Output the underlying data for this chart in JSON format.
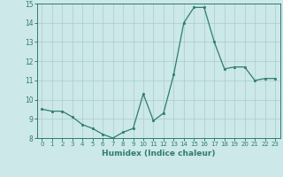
{
  "x": [
    0,
    1,
    2,
    3,
    4,
    5,
    6,
    7,
    8,
    9,
    10,
    11,
    12,
    13,
    14,
    15,
    16,
    17,
    18,
    19,
    20,
    21,
    22,
    23
  ],
  "y": [
    9.5,
    9.4,
    9.4,
    9.1,
    8.7,
    8.5,
    8.2,
    8.0,
    8.3,
    8.5,
    10.3,
    8.9,
    9.3,
    11.3,
    14.0,
    14.8,
    14.8,
    13.0,
    11.6,
    11.7,
    11.7,
    11.0,
    11.1,
    11.1
  ],
  "xlabel": "Humidex (Indice chaleur)",
  "ylim": [
    8,
    15
  ],
  "xlim": [
    -0.5,
    23.5
  ],
  "yticks": [
    8,
    9,
    10,
    11,
    12,
    13,
    14,
    15
  ],
  "xticks": [
    0,
    1,
    2,
    3,
    4,
    5,
    6,
    7,
    8,
    9,
    10,
    11,
    12,
    13,
    14,
    15,
    16,
    17,
    18,
    19,
    20,
    21,
    22,
    23
  ],
  "line_color": "#2e7d6e",
  "marker_color": "#2e7d6e",
  "bg_color": "#cce8e8",
  "grid_color": "#aacccc",
  "tick_label_color": "#2e7d6e",
  "xlabel_color": "#2e7d6e",
  "spine_color": "#2e7d6e"
}
